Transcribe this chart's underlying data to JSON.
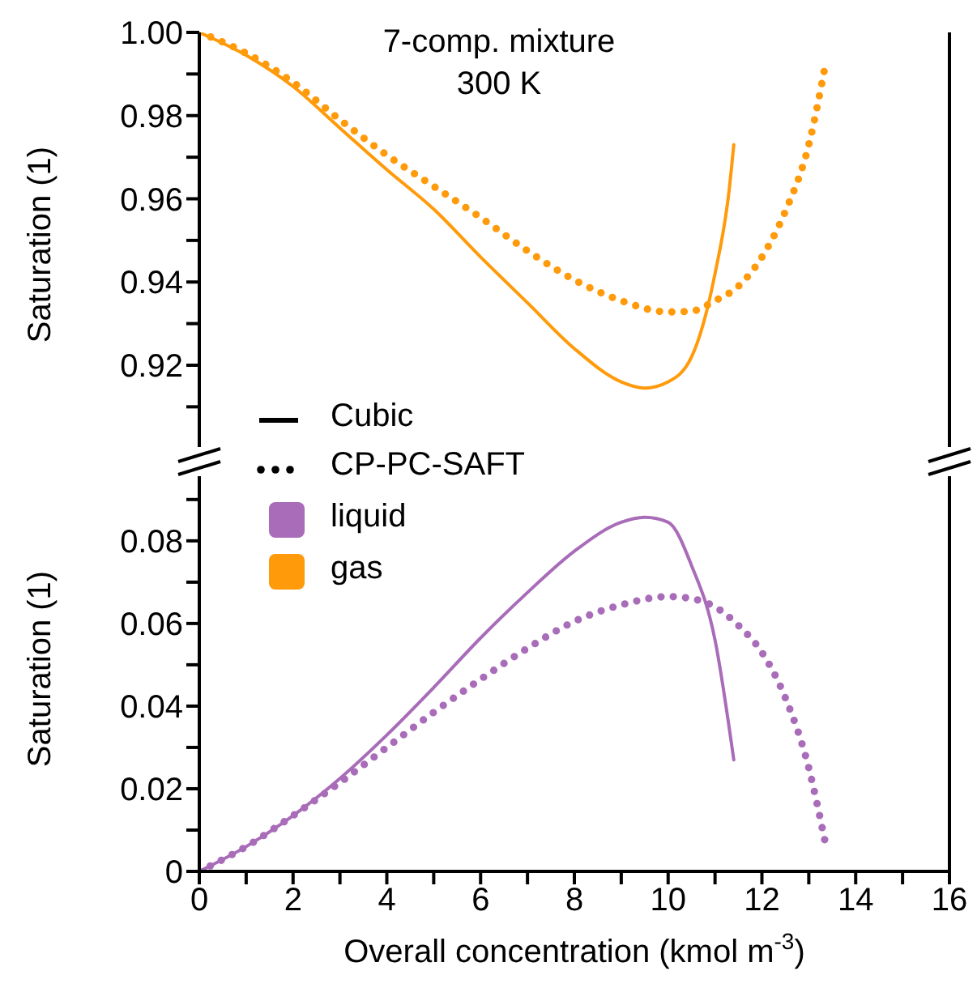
{
  "chart_data": [
    {
      "type": "line",
      "ylabel": "Saturation (1)",
      "annotations": [
        "7-comp. mixture",
        "300 K",
        "Cubic",
        "CP-PC-SAFT",
        "liquid",
        "gas"
      ],
      "xlim": [
        0,
        16
      ],
      "ylim": [
        0.898,
        1.0
      ],
      "yticks": [
        {
          "value": 0.91,
          "label": null
        },
        0.92,
        {
          "value": 0.93,
          "label": null
        },
        0.94,
        {
          "value": 0.95,
          "label": null
        },
        0.96,
        {
          "value": 0.97,
          "label": null
        },
        0.98,
        {
          "value": 0.99,
          "label": null
        },
        "1.00"
      ],
      "tick_labels": "y",
      "series": [
        {
          "color": "#ff9a0a",
          "line_style": "solid",
          "x": [
            0,
            1,
            2,
            3,
            4,
            5,
            6,
            7,
            8,
            9,
            9.5,
            10,
            10.5,
            11,
            11.3,
            11.4
          ],
          "values": [
            1.0,
            0.9945,
            0.987,
            0.977,
            0.967,
            0.9575,
            0.946,
            0.935,
            0.924,
            0.916,
            0.9145,
            0.916,
            0.922,
            0.942,
            0.962,
            0.973
          ]
        },
        {
          "color": "#ff9a0a",
          "line_style": "dotted",
          "x": [
            0,
            1,
            2,
            3,
            4,
            5,
            6,
            7,
            8,
            9,
            10,
            10.5,
            11,
            11.5,
            12,
            12.5,
            13,
            13.35
          ],
          "values": [
            1.0,
            0.995,
            0.988,
            0.979,
            0.9705,
            0.963,
            0.9555,
            0.9475,
            0.9405,
            0.9355,
            0.9328,
            0.933,
            0.9355,
            0.939,
            0.946,
            0.957,
            0.973,
            0.992
          ]
        }
      ]
    },
    {
      "type": "line",
      "ylabel": "Saturation (1)",
      "xlabel": "Overall concentration (kmol m$^{-3}$)",
      "xlim": [
        0,
        16
      ],
      "xticks": [
        0,
        {
          "value": 1,
          "label": null
        },
        2,
        {
          "value": 3,
          "label": null
        },
        4,
        {
          "value": 5,
          "label": null
        },
        6,
        {
          "value": 7,
          "label": null
        },
        8,
        {
          "value": 9,
          "label": null
        },
        10,
        {
          "value": 11,
          "label": null
        },
        12,
        {
          "value": 13,
          "label": null
        },
        14,
        {
          "value": 15,
          "label": null
        },
        16
      ],
      "ylim": [
        0,
        0.098
      ],
      "yticks": [
        0,
        {
          "value": 0.01,
          "label": null
        },
        0.02,
        {
          "value": 0.03,
          "label": null
        },
        0.04,
        {
          "value": 0.05,
          "label": null
        },
        0.06,
        {
          "value": 0.07,
          "label": null
        },
        0.08,
        {
          "value": 0.09,
          "label": null
        }
      ],
      "series": [
        {
          "color": "#a86cb8",
          "line_style": "solid",
          "x": [
            0,
            1,
            2,
            3,
            4,
            5,
            6,
            7,
            8,
            9,
            9.5,
            10,
            10.5,
            11,
            11.4
          ],
          "values": [
            0,
            0.006,
            0.0135,
            0.0225,
            0.033,
            0.0445,
            0.0565,
            0.0675,
            0.0775,
            0.0845,
            0.0857,
            0.0845,
            0.074,
            0.056,
            0.027
          ]
        },
        {
          "color": "#a86cb8",
          "line_style": "dotted",
          "x": [
            0,
            1,
            2,
            3,
            4,
            5,
            6,
            7,
            8,
            9,
            10,
            10.5,
            11,
            11.5,
            12,
            12.5,
            13,
            13.35
          ],
          "values": [
            0,
            0.006,
            0.0135,
            0.0215,
            0.03,
            0.0385,
            0.0465,
            0.054,
            0.0605,
            0.0645,
            0.0665,
            0.066,
            0.064,
            0.0595,
            0.053,
            0.042,
            0.025,
            0.007
          ]
        }
      ]
    }
  ]
}
